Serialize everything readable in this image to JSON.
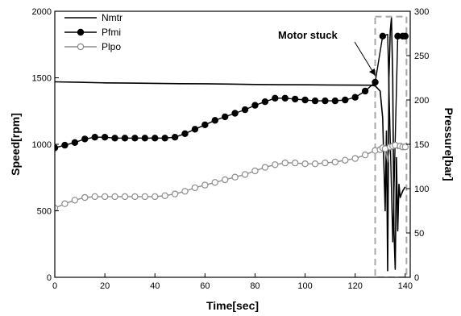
{
  "chart_data": {
    "type": "line",
    "xlabel": "Time[sec]",
    "ylabel": "Speed[rpm]",
    "y2label": "Pressure[bar]",
    "xlim": [
      0,
      142
    ],
    "ylim": [
      0,
      2000
    ],
    "y2lim": [
      0,
      300
    ],
    "xticks": [
      0,
      20,
      40,
      60,
      80,
      100,
      120,
      140
    ],
    "yticks": [
      0,
      500,
      1000,
      1500,
      2000
    ],
    "y2ticks": [
      0,
      50,
      100,
      150,
      200,
      250,
      300
    ],
    "grid": false,
    "legend_position": "top-left",
    "annotation": {
      "text": "Motor stuck",
      "x": 129,
      "y": 1480
    },
    "highlight_box": {
      "x0": 128,
      "x1": 140.5,
      "y0": 0,
      "y1": 1960
    },
    "series": [
      {
        "name": "Nmtr",
        "axis": "left",
        "color": "#000000",
        "marker": "none",
        "x": [
          0,
          10,
          20,
          30,
          40,
          50,
          60,
          70,
          80,
          90,
          100,
          110,
          120,
          126,
          128,
          130,
          131,
          132,
          132.5,
          133,
          133.5,
          134,
          134.5,
          135,
          135.5,
          136,
          136.5,
          137,
          137.5,
          138,
          139,
          140
        ],
        "y": [
          1470,
          1466,
          1462,
          1460,
          1458,
          1456,
          1455,
          1453,
          1450,
          1448,
          1447,
          1446,
          1445,
          1444,
          1440,
          1400,
          1200,
          500,
          1100,
          50,
          1500,
          1850,
          1950,
          1500,
          350,
          60,
          900,
          350,
          700,
          600,
          650,
          680
        ]
      },
      {
        "name": "Pfmi",
        "axis": "right",
        "color": "#000000",
        "marker": "filled-circle",
        "x": [
          0,
          4,
          8,
          12,
          16,
          20,
          24,
          28,
          32,
          36,
          40,
          44,
          48,
          52,
          56,
          60,
          64,
          68,
          72,
          76,
          80,
          84,
          88,
          92,
          96,
          100,
          104,
          108,
          112,
          116,
          120,
          124,
          128,
          131,
          133,
          135,
          137,
          139,
          140
        ],
        "y": [
          146,
          149,
          152,
          156,
          158,
          158,
          157,
          157,
          157,
          157,
          157,
          157,
          158,
          162,
          167,
          172,
          177,
          181,
          185,
          189,
          194,
          198,
          202,
          202,
          201,
          200,
          199,
          199,
          199,
          200,
          203,
          210,
          220,
          272,
          274,
          40,
          272,
          272,
          272
        ]
      },
      {
        "name": "Plpo",
        "axis": "right",
        "color": "#8c8c8c",
        "marker": "open-circle",
        "x": [
          0,
          4,
          8,
          12,
          16,
          20,
          24,
          28,
          32,
          36,
          40,
          44,
          48,
          52,
          56,
          60,
          64,
          68,
          72,
          76,
          80,
          84,
          88,
          92,
          96,
          100,
          104,
          108,
          112,
          116,
          120,
          124,
          128,
          130,
          131,
          132,
          133,
          134,
          135,
          136,
          137,
          138,
          139,
          140
        ],
        "y": [
          78,
          83,
          87,
          90,
          91,
          91,
          91,
          91,
          91,
          91,
          91,
          92,
          94,
          97,
          101,
          104,
          107,
          110,
          113,
          116,
          120,
          124,
          127,
          129,
          129,
          128,
          128,
          129,
          130,
          132,
          134,
          138,
          143,
          144,
          146,
          145,
          130,
          147,
          148,
          149,
          145,
          148,
          147,
          147
        ]
      }
    ]
  }
}
